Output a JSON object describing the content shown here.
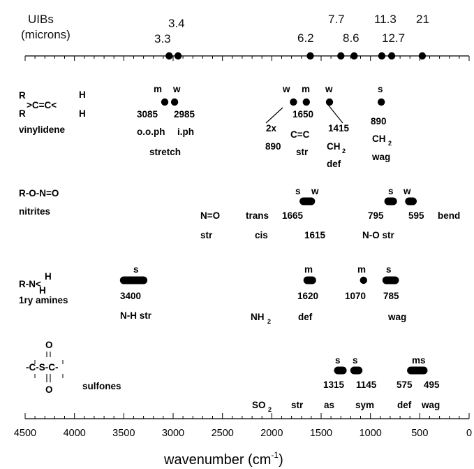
{
  "top_axis": {
    "title_line1": "UIBs",
    "title_line2": "(microns)",
    "labels": [
      "3.4",
      "3.3",
      "6.2",
      "7.7",
      "8.6",
      "11.3",
      "12.7",
      "21"
    ],
    "bands": [
      3040,
      2950,
      1610,
      1300,
      1165,
      885,
      785,
      475
    ]
  },
  "groups": {
    "vinylidene": {
      "formula": {
        "r1": "R",
        "r2": "R",
        "core": ">C=C<",
        "h1": "H",
        "h2": "H"
      },
      "name": "vinylidene",
      "intensities": [
        "m",
        "w",
        "w",
        "m",
        "w",
        "s"
      ],
      "bands": [
        3085,
        2985,
        1780,
        1650,
        1415,
        890
      ],
      "labels": [
        "3085",
        "2985",
        "1650",
        "890",
        "2x",
        "1415",
        "890"
      ],
      "desc": {
        "ooph": "o.o.ph",
        "iph": "i.ph",
        "stretch": "stretch",
        "cc": "C=C",
        "str": "str",
        "ch": "CH",
        "ch_sub": "2",
        "def": "def",
        "ch2": "CH",
        "ch2_sub": "2",
        "wag": "wag"
      }
    },
    "nitrites": {
      "formula": "R-O-N=O",
      "name": "nitrites",
      "intensities": [
        "s",
        "w",
        "s",
        "w"
      ],
      "bands": [
        1665,
        1615,
        795,
        595
      ],
      "band_ranges": [
        [
          1680,
          1640
        ],
        [
          1635,
          1600
        ],
        [
          820,
          770
        ],
        [
          610,
          570
        ]
      ],
      "labels": [
        "1665",
        "795",
        "595",
        "1615"
      ],
      "desc": {
        "no": "N=O",
        "str1": "str",
        "trans": "trans",
        "cis": "cis",
        "nostr": "N-O str",
        "bend": "bend"
      }
    },
    "amines": {
      "formula": {
        "core": "R-N<",
        "h1": "H",
        "h2": "H"
      },
      "name": "1ry amines",
      "intensities": [
        "s",
        "m",
        "m",
        "s"
      ],
      "bands": [
        3400,
        1620,
        1070,
        785
      ],
      "band_ranges": [
        [
          3500,
          3300
        ],
        [
          1640,
          1590
        ],
        [
          1070,
          1070
        ],
        [
          840,
          750
        ]
      ],
      "labels": [
        "3400",
        "1620",
        "1070",
        "785"
      ],
      "desc": {
        "nhstr": "N-H str",
        "nh": "NH",
        "nh_sub": "2",
        "def": "def",
        "wag": "wag"
      }
    },
    "sulfones": {
      "formula": {
        "o_top": "O",
        "core": "-C-S-C-",
        "o_bot": "O"
      },
      "name": "sulfones",
      "intensities": [
        "s",
        "s",
        "ms"
      ],
      "bands": [
        1315,
        1145,
        535
      ],
      "band_ranges": [
        [
          1330,
          1280
        ],
        [
          1165,
          1120
        ],
        [
          590,
          460
        ]
      ],
      "labels": [
        "1315",
        "1145",
        "575",
        "495"
      ],
      "desc": {
        "so": "SO",
        "so_sub": "2",
        "str": "str",
        "as": "as",
        "sym": "sym",
        "def": "def",
        "wag": "wag"
      }
    }
  },
  "x_axis": {
    "ticks": [
      4500,
      4000,
      3500,
      3000,
      2500,
      2000,
      1500,
      1000,
      500,
      0
    ],
    "tick_labels": [
      "4500",
      "4000",
      "3500",
      "3000",
      "2500",
      "2000",
      "1500",
      "1000",
      "500",
      "0"
    ],
    "label_main": "wavenumber (cm",
    "label_sup": "-1",
    "label_end": ")",
    "range": [
      4500,
      0
    ]
  }
}
